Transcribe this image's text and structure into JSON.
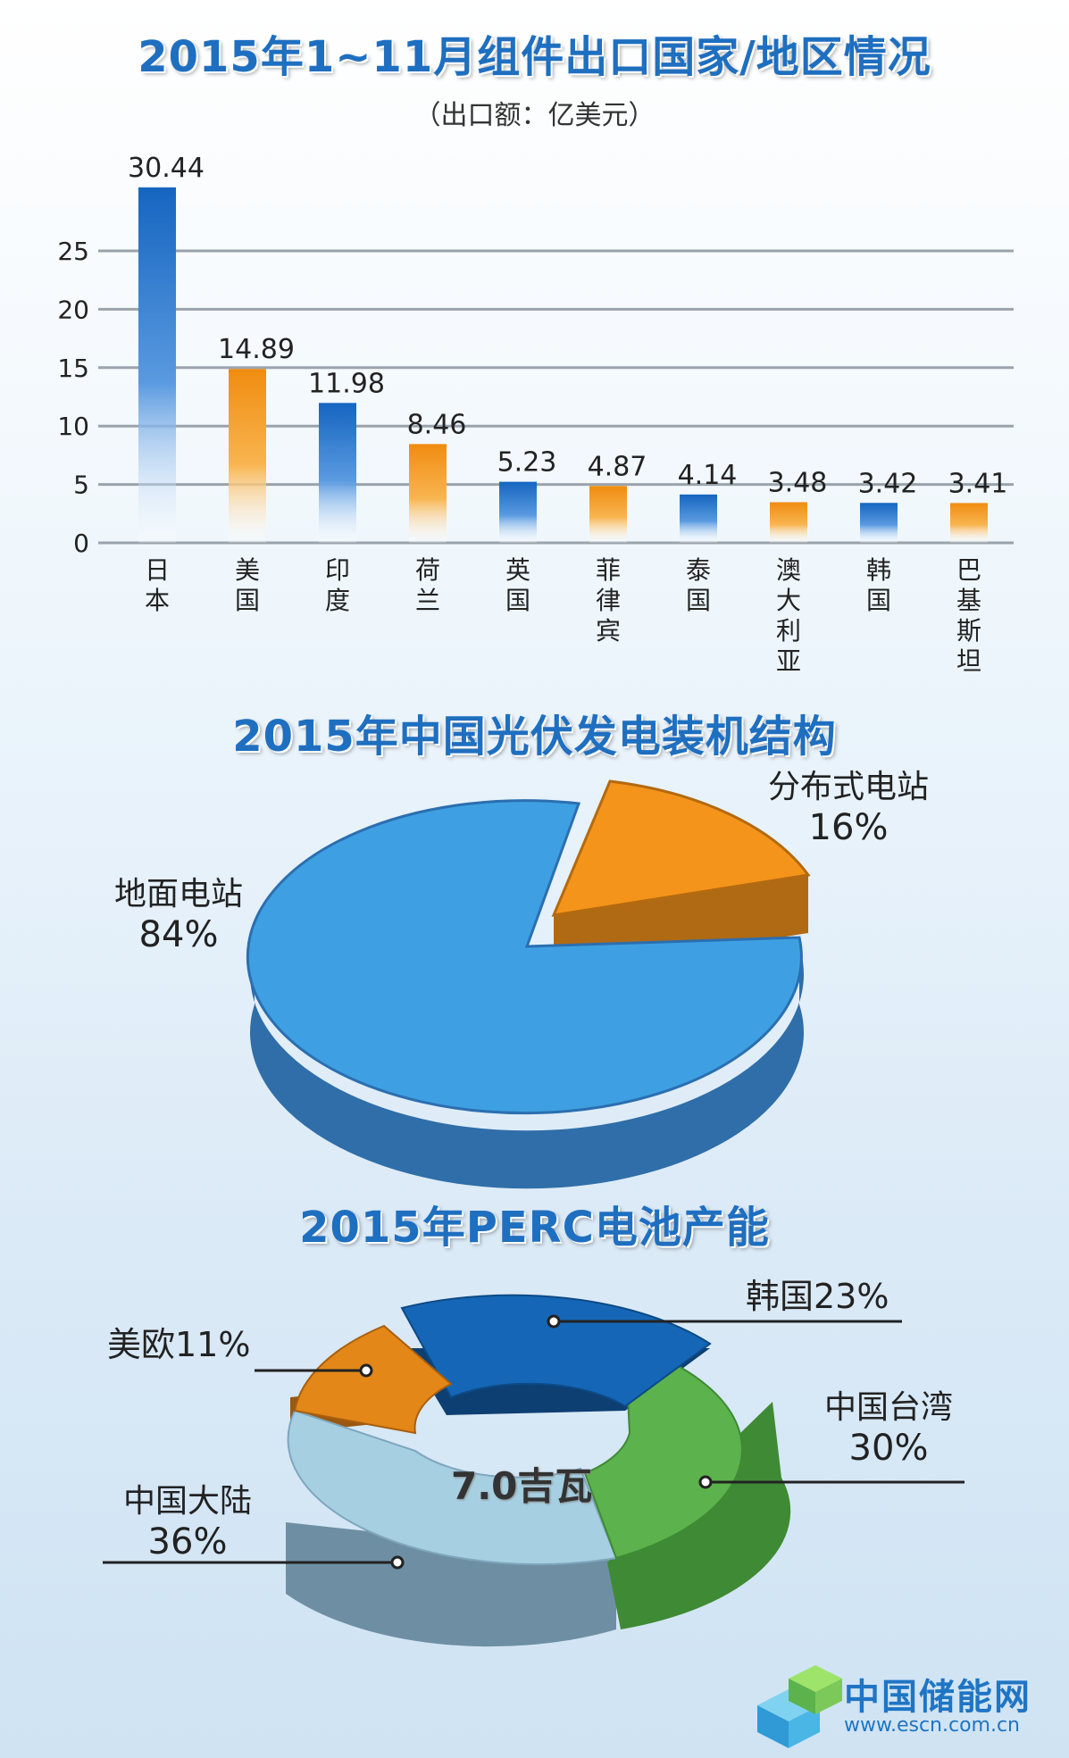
{
  "bar_section": {
    "title": "2015年1~11月组件出口国家/地区情况",
    "unit_note": "（出口额：亿美元）"
  },
  "pie_section": {
    "title": "2015年中国光伏发电装机结构",
    "labels": [
      {
        "name": "地面电站",
        "pct": "84%"
      },
      {
        "name": "分布式电站",
        "pct": "16%"
      }
    ]
  },
  "donut_section": {
    "title": "2015年PERC电池产能",
    "center_label": "7.0吉瓦",
    "labels": {
      "korea": "韩国23%",
      "eu_us": "美欧11%",
      "taiwan_name": "中国台湾",
      "taiwan_pct": "30%",
      "mainland_name": "中国大陆",
      "mainland_pct": "36%"
    }
  },
  "logo": {
    "name": "中国储能网",
    "url": "www.escn.com.cn"
  },
  "colors": {
    "title_blue": "#1f6fc0",
    "bar_blue": "#1a6fc4",
    "bar_orange": "#f39a1e",
    "pie_blue": "#3a9fe0",
    "pie_orange": "#f5941a",
    "donut_korea": "#1565b5",
    "donut_taiwan": "#5cb24c",
    "donut_mainland": "#9fcbe0",
    "donut_euus": "#e08416"
  },
  "chart_data": [
    {
      "type": "bar",
      "title": "2015年1~11月组件出口国家/地区情况",
      "subtitle": "（出口额：亿美元）",
      "categories": [
        "日本",
        "美国",
        "印度",
        "荷兰",
        "英国",
        "菲律宾",
        "泰国",
        "澳大利亚",
        "韩国",
        "巴基斯坦"
      ],
      "values": [
        30.44,
        14.89,
        11.98,
        8.46,
        5.23,
        4.87,
        4.14,
        3.48,
        3.42,
        3.41
      ],
      "value_labels": [
        "30.44",
        "14.89",
        "11.98",
        "8.46",
        "5.23",
        "4.87",
        "4.14",
        "3.48",
        "3.42",
        "3.41"
      ],
      "bar_colors": [
        "blue",
        "orange",
        "blue",
        "orange",
        "blue",
        "orange",
        "blue",
        "orange",
        "blue",
        "orange"
      ],
      "yticks": [
        0,
        5,
        10,
        15,
        20,
        25
      ],
      "ylim": [
        0,
        25
      ],
      "grid": true
    },
    {
      "type": "pie",
      "title": "2015年中国光伏发电装机结构",
      "slices": [
        {
          "label": "地面电站",
          "value": 84
        },
        {
          "label": "分布式电站",
          "value": 16
        }
      ]
    },
    {
      "type": "pie",
      "style": "donut",
      "title": "2015年PERC电池产能",
      "center_text": "7.0吉瓦",
      "slices": [
        {
          "label": "韩国",
          "value": 23
        },
        {
          "label": "中国台湾",
          "value": 30
        },
        {
          "label": "中国大陆",
          "value": 36
        },
        {
          "label": "美欧",
          "value": 11
        }
      ]
    }
  ]
}
